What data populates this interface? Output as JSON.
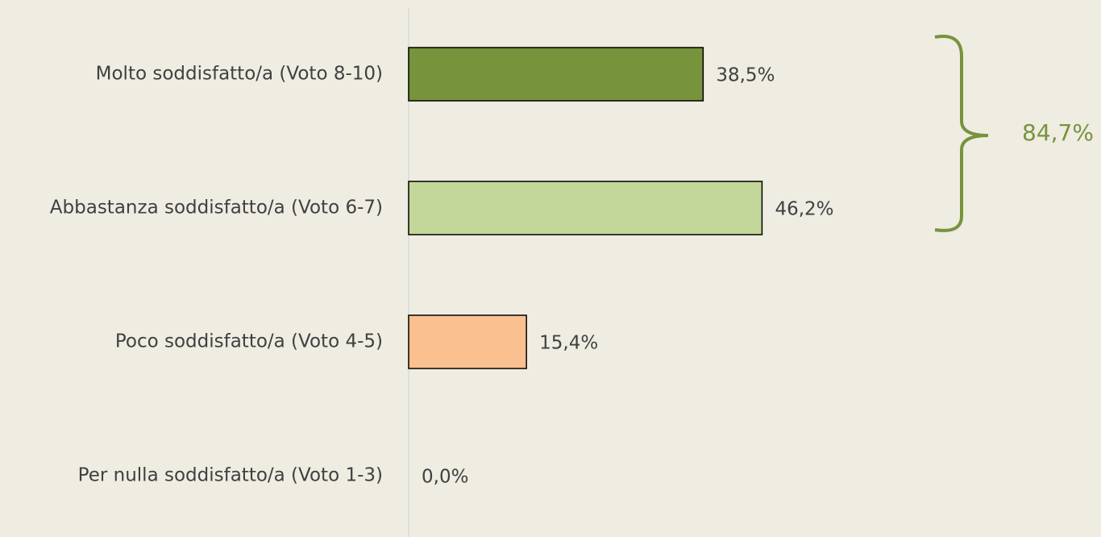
{
  "chart_data": {
    "type": "hbar",
    "categories": [
      "Molto soddisfatto/a (Voto 8-10)",
      "Abbastanza soddisfatto/a (Voto 6-7)",
      "Poco soddisfatto/a (Voto 4-5)",
      "Per nulla soddisfatto/a (Voto 1-3)"
    ],
    "values": [
      38.5,
      46.2,
      15.4,
      0.0
    ],
    "value_labels": [
      "38,5%",
      "46,2%",
      "15,4%",
      "0,0%"
    ],
    "colors": [
      "#77933c",
      "#c4d79b",
      "#fac090",
      "#c0504d"
    ],
    "annotation": "84,7%"
  }
}
